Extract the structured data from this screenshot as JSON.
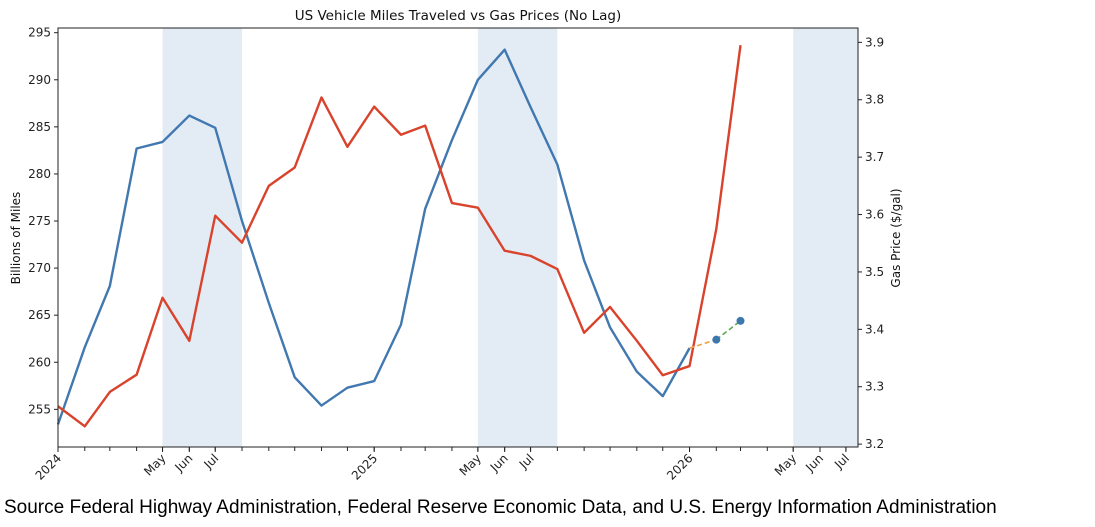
{
  "chart_data": {
    "type": "line",
    "title": "US Vehicle Miles Traveled vs Gas Prices (No Lag)",
    "ylabel_left": "Billions of Miles",
    "ylabel_right": "Gas Price ($/gal)",
    "xlim": [
      "2024-01-01",
      "2026-07-15"
    ],
    "ylim_left": [
      251,
      295.5
    ],
    "ylim_right": [
      3.195,
      3.925
    ],
    "yticks_left": [
      255,
      260,
      265,
      270,
      275,
      280,
      285,
      290,
      295
    ],
    "yticks_right": [
      "3.2",
      "3.3",
      "3.4",
      "3.5",
      "3.6",
      "3.7",
      "3.8",
      "3.9"
    ],
    "xticks": [
      {
        "date": "2024-01-01",
        "label": "2024"
      },
      {
        "date": "2024-05-01",
        "label": "May"
      },
      {
        "date": "2024-06-01",
        "label": "Jun"
      },
      {
        "date": "2024-07-01",
        "label": "Jul"
      },
      {
        "date": "2025-01-01",
        "label": "2025"
      },
      {
        "date": "2025-05-01",
        "label": "May"
      },
      {
        "date": "2025-06-01",
        "label": "Jun"
      },
      {
        "date": "2025-07-01",
        "label": "Jul"
      },
      {
        "date": "2026-01-01",
        "label": "2026"
      },
      {
        "date": "2026-05-01",
        "label": "May"
      },
      {
        "date": "2026-06-01",
        "label": "Jun"
      },
      {
        "date": "2026-07-01",
        "label": "Jul"
      }
    ],
    "grid": false,
    "shaded_periods": [
      [
        "2024-05-01",
        "2024-08-01"
      ],
      [
        "2025-05-01",
        "2025-08-01"
      ],
      [
        "2026-05-01",
        "2026-07-15"
      ]
    ],
    "colors": {
      "vmt": "#4178b0",
      "gas": "#d9432c",
      "shade": "#e3ecf5",
      "forecast1": "#f0a040",
      "forecast2": "#5aa850",
      "forecast_point": "#3d78ad"
    },
    "series": [
      {
        "axis": "left",
        "dates": [
          "2024-01",
          "2024-02",
          "2024-03",
          "2024-04",
          "2024-05",
          "2024-06",
          "2024-07",
          "2024-08",
          "2024-09",
          "2024-10",
          "2024-11",
          "2024-12",
          "2025-01",
          "2025-02",
          "2025-03",
          "2025-04",
          "2025-05",
          "2025-06",
          "2025-07",
          "2025-08",
          "2025-09",
          "2025-10",
          "2025-11",
          "2025-12",
          "2026-01"
        ],
        "values": [
          253.4,
          261.6,
          268.1,
          282.7,
          283.4,
          286.2,
          284.9,
          275.0,
          266.3,
          258.4,
          255.4,
          257.3,
          258.0,
          264.0,
          276.3,
          283.6,
          290.0,
          293.2,
          287.1,
          281.0,
          270.8,
          263.7,
          259.0,
          256.4,
          261.5
        ]
      },
      {
        "axis": "right",
        "dates": [
          "2024-01",
          "2024-02",
          "2024-03",
          "2024-04",
          "2024-05",
          "2024-06",
          "2024-07",
          "2024-08",
          "2024-09",
          "2024-10",
          "2024-11",
          "2024-12",
          "2025-01",
          "2025-02",
          "2025-03",
          "2025-04",
          "2025-05",
          "2025-06",
          "2025-07",
          "2025-08",
          "2025-09",
          "2025-10",
          "2025-11",
          "2025-12",
          "2026-01",
          "2026-02",
          "2026-03"
        ],
        "values": [
          3.266,
          3.231,
          3.291,
          3.321,
          3.455,
          3.38,
          3.598,
          3.551,
          3.65,
          3.682,
          3.804,
          3.718,
          3.788,
          3.739,
          3.755,
          3.62,
          3.612,
          3.537,
          3.528,
          3.505,
          3.394,
          3.439,
          3.38,
          3.32,
          3.336,
          3.575,
          3.895
        ]
      }
    ],
    "forecast": {
      "axis": "left",
      "dates": [
        "2026-01",
        "2026-02",
        "2026-03"
      ],
      "values": [
        261.5,
        262.4,
        264.4
      ]
    }
  },
  "caption": "Source Federal Highway Administration, Federal Reserve Economic Data, and U.S. Energy Information Administration"
}
